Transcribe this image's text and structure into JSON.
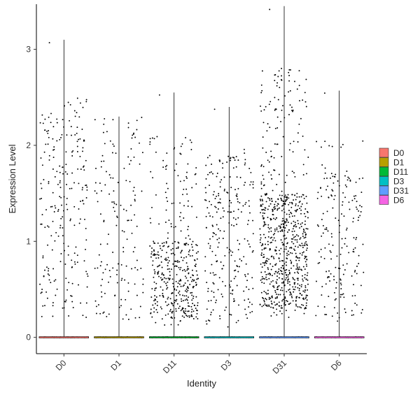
{
  "chart_data": {
    "type": "violin",
    "xlabel": "Identity",
    "ylabel": "Expression Level",
    "ylim": [
      -0.17,
      3.47
    ],
    "yticks": [
      0,
      1,
      2,
      3
    ],
    "categories": [
      "D0",
      "D1",
      "D11",
      "D3",
      "D31",
      "D6"
    ],
    "series": [
      {
        "name": "D0",
        "color": "#F8766D",
        "max": 3.1,
        "n_zero": 120,
        "n_points": 230,
        "dense_low": 0.3,
        "dense_high": 2.5
      },
      {
        "name": "D1",
        "color": "#B79F00",
        "max": 2.3,
        "n_zero": 110,
        "n_points": 150,
        "dense_low": 0.2,
        "dense_high": 2.3
      },
      {
        "name": "D11",
        "color": "#00BA38",
        "max": 2.55,
        "n_zero": 120,
        "n_points": 420,
        "dense_low": 0.2,
        "dense_high": 1.0
      },
      {
        "name": "D3",
        "color": "#00BFC4",
        "max": 2.4,
        "n_zero": 110,
        "n_points": 250,
        "dense_low": 0.15,
        "dense_high": 1.9
      },
      {
        "name": "D31",
        "color": "#619CFF",
        "max": 3.45,
        "n_zero": 120,
        "n_points": 760,
        "dense_low": 0.3,
        "dense_high": 1.5
      },
      {
        "name": "D6",
        "color": "#F564E3",
        "max": 2.57,
        "n_zero": 110,
        "n_points": 190,
        "dense_low": 0.2,
        "dense_high": 1.8
      }
    ],
    "legend": {
      "position": "right",
      "entries": [
        "D0",
        "D1",
        "D11",
        "D3",
        "D31",
        "D6"
      ]
    },
    "grid": false
  }
}
